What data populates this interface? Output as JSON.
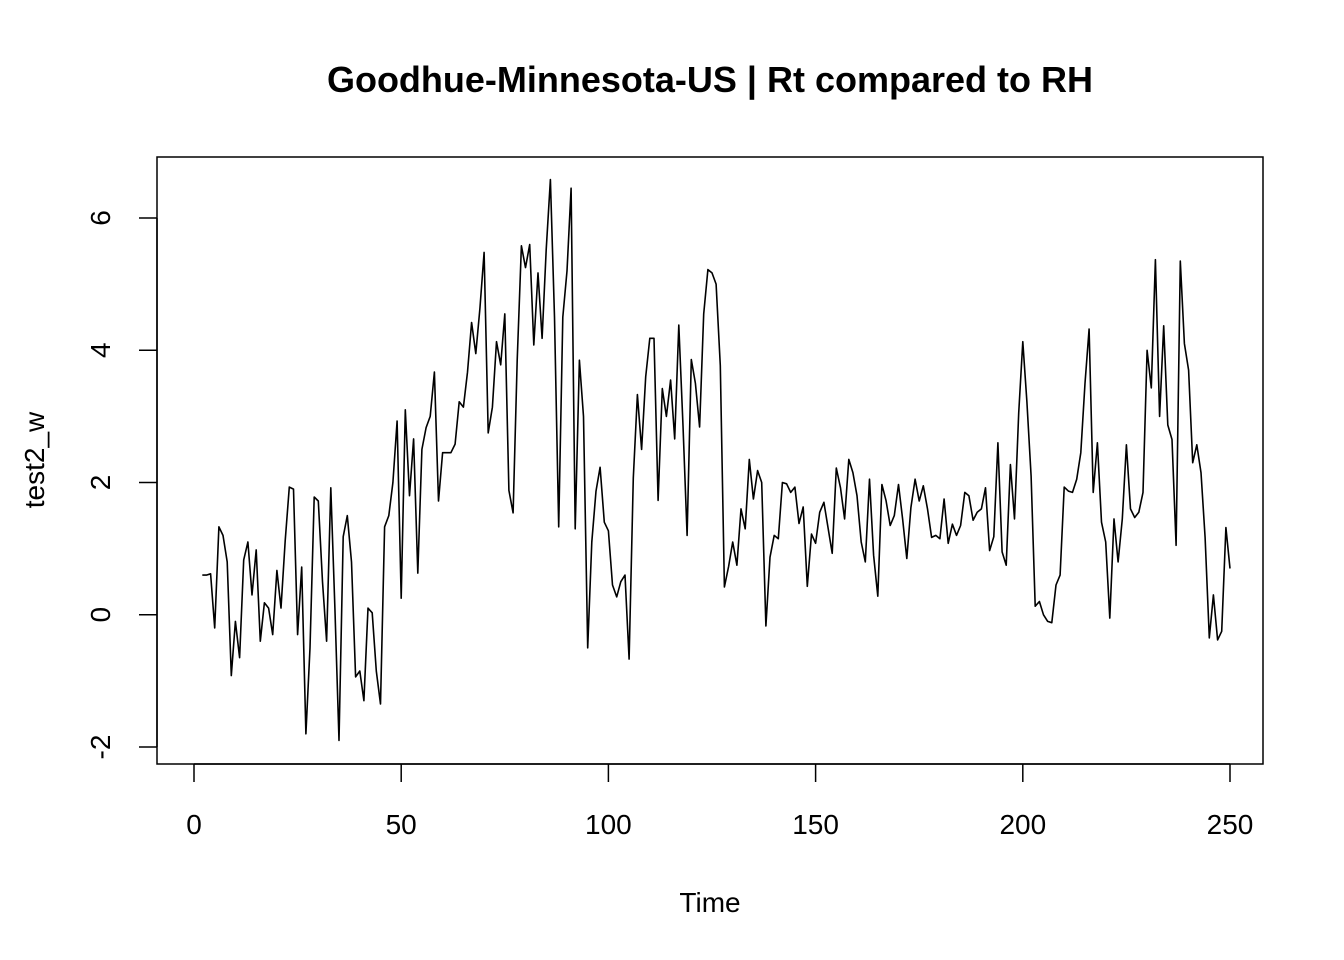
{
  "chart_data": {
    "type": "line",
    "title": "Goodhue-Minnesota-US | Rt compared to RH",
    "xlabel": "Time",
    "ylabel": "test2_w",
    "xlim": [
      0,
      250
    ],
    "ylim": [
      -2,
      6
    ],
    "x_ticks": [
      0,
      50,
      100,
      150,
      200,
      250
    ],
    "y_ticks": [
      -2,
      0,
      2,
      4,
      6
    ],
    "x_tick_labels": [
      "0",
      "50",
      "100",
      "150",
      "200",
      "250"
    ],
    "y_tick_labels": [
      "-2",
      "0",
      "2",
      "4",
      "6"
    ],
    "grid": false,
    "line_color": "#000000",
    "series": [
      {
        "x_start": 2,
        "x_step": 1,
        "values": [
          0.6,
          0.6,
          0.62,
          -0.2,
          1.33,
          1.2,
          0.8,
          -0.92,
          -0.1,
          -0.65,
          0.83,
          1.1,
          0.3,
          0.98,
          -0.4,
          0.18,
          0.1,
          -0.3,
          0.67,
          0.1,
          1.12,
          1.93,
          1.9,
          -0.3,
          0.72,
          -1.8,
          -0.5,
          1.78,
          1.72,
          0.5,
          -0.4,
          1.92,
          0.1,
          -1.9,
          1.18,
          1.5,
          0.8,
          -0.94,
          -0.85,
          -1.3,
          0.1,
          0.03,
          -0.85,
          -1.35,
          1.33,
          1.5,
          2.0,
          2.93,
          0.25,
          3.1,
          1.8,
          2.66,
          0.63,
          2.5,
          2.83,
          3.0,
          3.67,
          1.72,
          2.45,
          2.45,
          2.45,
          2.58,
          3.22,
          3.14,
          3.67,
          4.42,
          3.95,
          4.63,
          5.48,
          2.75,
          3.14,
          4.13,
          3.78,
          4.55,
          1.88,
          1.54,
          3.85,
          5.58,
          5.25,
          5.6,
          4.08,
          5.17,
          4.18,
          5.52,
          6.58,
          4.5,
          1.33,
          4.5,
          5.2,
          6.45,
          1.3,
          3.85,
          3.0,
          -0.5,
          1.1,
          1.87,
          2.23,
          1.4,
          1.27,
          0.45,
          0.27,
          0.5,
          0.6,
          -0.67,
          2.07,
          3.33,
          2.5,
          3.6,
          4.18,
          4.18,
          1.73,
          3.42,
          3.0,
          3.55,
          2.66,
          4.38,
          2.86,
          1.2,
          3.86,
          3.5,
          2.84,
          4.55,
          5.22,
          5.17,
          5.0,
          3.77,
          0.42,
          0.73,
          1.1,
          0.75,
          1.6,
          1.3,
          2.35,
          1.75,
          2.18,
          2.0,
          -0.17,
          0.87,
          1.2,
          1.15,
          2.0,
          1.98,
          1.85,
          1.93,
          1.38,
          1.63,
          0.43,
          1.22,
          1.08,
          1.55,
          1.7,
          1.32,
          0.93,
          2.22,
          1.92,
          1.45,
          2.35,
          2.15,
          1.8,
          1.1,
          0.8,
          2.05,
          0.9,
          0.28,
          1.97,
          1.73,
          1.35,
          1.5,
          1.97,
          1.45,
          0.85,
          1.62,
          2.05,
          1.72,
          1.95,
          1.6,
          1.17,
          1.2,
          1.15,
          1.75,
          1.08,
          1.37,
          1.2,
          1.35,
          1.85,
          1.8,
          1.43,
          1.55,
          1.6,
          1.92,
          0.97,
          1.18,
          2.6,
          0.95,
          0.75,
          2.27,
          1.45,
          3.05,
          4.13,
          3.22,
          2.1,
          0.13,
          0.2,
          0.0,
          -0.1,
          -0.12,
          0.45,
          0.6,
          1.93,
          1.87,
          1.85,
          2.05,
          2.45,
          3.5,
          4.32,
          1.85,
          2.6,
          1.4,
          1.1,
          -0.05,
          1.45,
          0.8,
          1.45,
          2.57,
          1.6,
          1.47,
          1.55,
          1.85,
          4.0,
          3.43,
          5.37,
          3.0,
          4.37,
          2.87,
          2.65,
          1.05,
          5.35,
          4.1,
          3.7,
          2.3,
          2.57,
          2.15,
          1.17,
          -0.35,
          0.3,
          -0.38,
          -0.25,
          1.32,
          0.7
        ]
      }
    ]
  }
}
